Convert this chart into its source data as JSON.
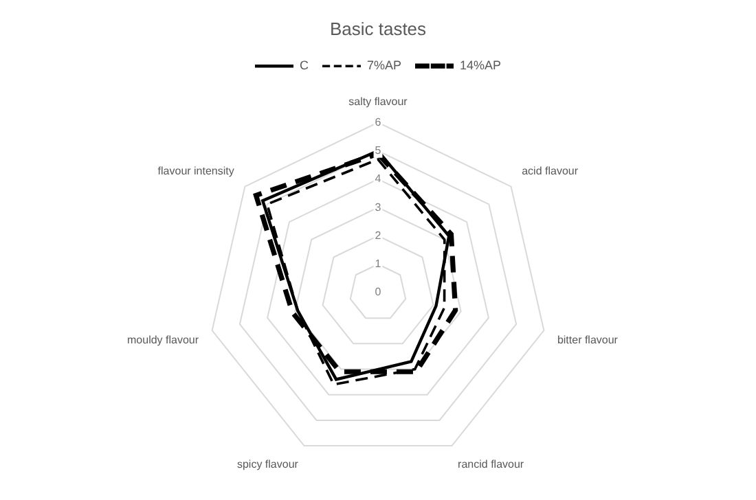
{
  "chart_data": {
    "type": "radar",
    "title": "Basic tastes",
    "categories": [
      "salty flavour",
      "acid flavour",
      "bitter flavour",
      "rancid flavour",
      "spicy flavour",
      "mouldy flavour",
      "flavour intensity"
    ],
    "series": [
      {
        "name": "C",
        "color": "#000000",
        "line_style": "solid",
        "values": [
          5.0,
          3.2,
          2.1,
          2.7,
          3.4,
          2.9,
          5.2
        ]
      },
      {
        "name": "7%AP",
        "color": "#000000",
        "line_style": "dashed",
        "values": [
          4.7,
          3.0,
          2.4,
          3.0,
          3.6,
          2.9,
          5.0
        ]
      },
      {
        "name": "14%AP",
        "color": "#000000",
        "line_style": "dashed",
        "values": [
          4.9,
          3.3,
          2.8,
          3.1,
          3.1,
          3.1,
          5.5
        ]
      }
    ],
    "ylim": [
      0,
      6
    ],
    "yticks": [
      0,
      1,
      2,
      3,
      4,
      5,
      6
    ],
    "grid": true,
    "legend": "top",
    "marker": "none"
  }
}
